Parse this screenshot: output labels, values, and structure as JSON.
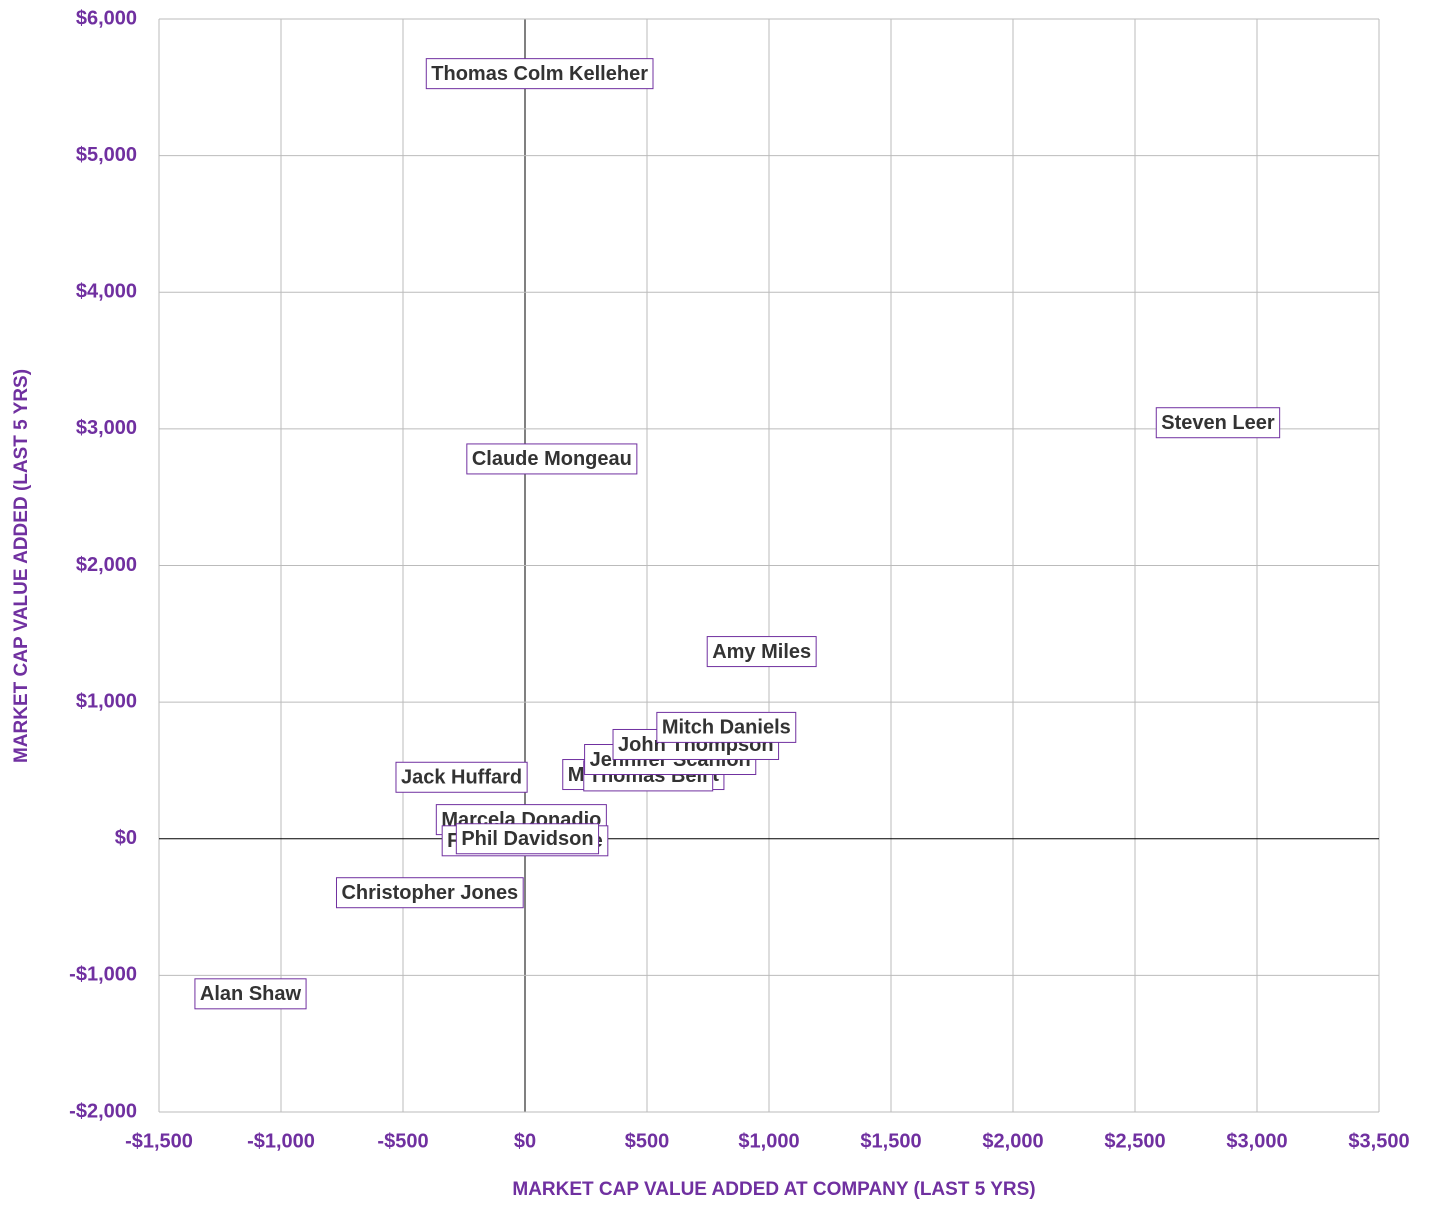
{
  "chart_data": {
    "type": "scatter",
    "xlabel": "MARKET CAP VALUE ADDED AT COMPANY (LAST 5 YRS)",
    "ylabel": "MARKET CAP VALUE ADDED (LAST 5 YRS)",
    "color": "#7030a0",
    "grid": true,
    "xlim": [
      -1500,
      3500
    ],
    "xticks": [
      {
        "value": -1500,
        "label": "-$1,500"
      },
      {
        "value": -1000,
        "label": "-$1,000"
      },
      {
        "value": -500,
        "label": "-$500"
      },
      {
        "value": 0,
        "label": "$0"
      },
      {
        "value": 500,
        "label": "$500"
      },
      {
        "value": 1000,
        "label": "$1,000"
      },
      {
        "value": 1500,
        "label": "$1,500"
      },
      {
        "value": 2000,
        "label": "$2,000"
      },
      {
        "value": 2500,
        "label": "$2,500"
      },
      {
        "value": 3000,
        "label": "$3,000"
      },
      {
        "value": 3500,
        "label": "$3,500"
      }
    ],
    "ylim": [
      -2000,
      6000
    ],
    "yticks": [
      {
        "value": -2000,
        "label": "-$2,000"
      },
      {
        "value": -1000,
        "label": "-$1,000"
      },
      {
        "value": 0,
        "label": "$0"
      },
      {
        "value": 1000,
        "label": "$1,000"
      },
      {
        "value": 2000,
        "label": "$2,000"
      },
      {
        "value": 3000,
        "label": "$3,000"
      },
      {
        "value": 4000,
        "label": "$4,000"
      },
      {
        "value": 5000,
        "label": "$5,000"
      },
      {
        "value": 6000,
        "label": "$6,000"
      }
    ],
    "labels": [
      "Thomas Colm Kelleher",
      "Claude Mongeau",
      "Steven Leer",
      "Amy Miles",
      "Michael Stewart",
      "Thomas Bell",
      "Jennifer Scanlon",
      "John Thompson",
      "Mitch Daniels",
      "Jack Huffard",
      "Marcela Donadio",
      "Francine Kearse",
      "Phil Davidson",
      "Christopher Jones",
      "Alan Shaw"
    ],
    "x": [
      60,
      110,
      2840,
      970,
      485,
      505,
      595,
      700,
      825,
      -260,
      -15,
      0,
      10,
      -390,
      -1125
    ],
    "values": [
      5600,
      2780,
      3045,
      1370,
      470,
      460,
      580,
      690,
      815,
      450,
      140,
      -15,
      0,
      -395,
      -1135
    ]
  }
}
